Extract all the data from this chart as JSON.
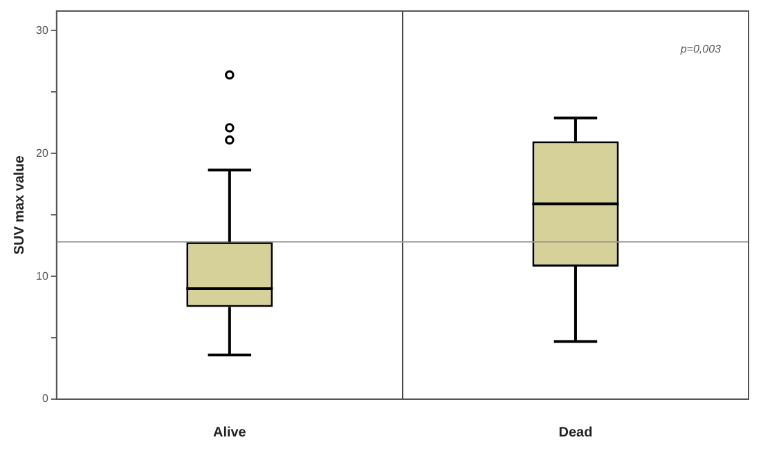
{
  "chart_data": {
    "type": "box",
    "ylabel": "SUV max value",
    "categories": [
      "Alive",
      "Dead"
    ],
    "color": "#d6d198",
    "boxes": [
      {
        "low": 3.6,
        "q1": 7.5,
        "median": 9.0,
        "q3": 12.8,
        "high": 18.65,
        "outliers": [
          21.1,
          22.1,
          26.4
        ]
      },
      {
        "low": 4.7,
        "q1": 10.8,
        "median": 15.9,
        "q3": 21.0,
        "high": 22.9
      }
    ],
    "ylim": [
      0,
      31.6
    ],
    "yticks": [
      0,
      {
        "value": 5,
        "label": null
      },
      10,
      {
        "value": 15,
        "label": null
      },
      20,
      {
        "value": 25,
        "label": null
      },
      30
    ],
    "grid": "x",
    "legend": false,
    "ref_lines": [
      {
        "axis": "y",
        "value": 12.8,
        "color": "#999999"
      }
    ],
    "annotations": [
      "p=0,003"
    ]
  }
}
